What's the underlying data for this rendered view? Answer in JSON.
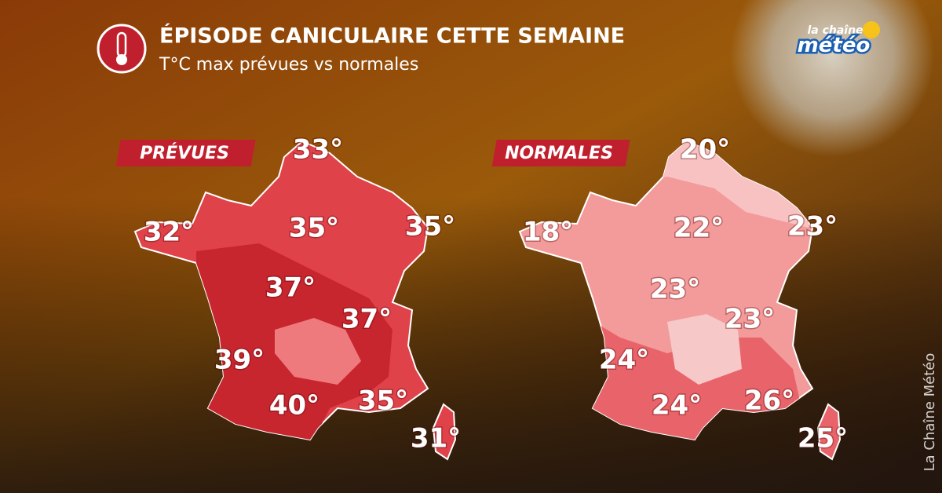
{
  "header": {
    "title": "ÉPISODE CANICULAIRE CETTE SEMAINE",
    "subtitle": "T°C max prévues vs normales"
  },
  "logo": {
    "line1": "la chaîne",
    "line2": "météo"
  },
  "maps": [
    {
      "label": "PRÉVUES",
      "temps": [
        "33°",
        "32°",
        "35°",
        "35°",
        "37°",
        "37°",
        "39°",
        "40°",
        "35°",
        "31°"
      ]
    },
    {
      "label": "NORMALES",
      "temps": [
        "20°",
        "18°",
        "22°",
        "23°",
        "23°",
        "23°",
        "24°",
        "24°",
        "26°",
        "25°"
      ]
    }
  ],
  "credit": "La Chaîne Météo"
}
